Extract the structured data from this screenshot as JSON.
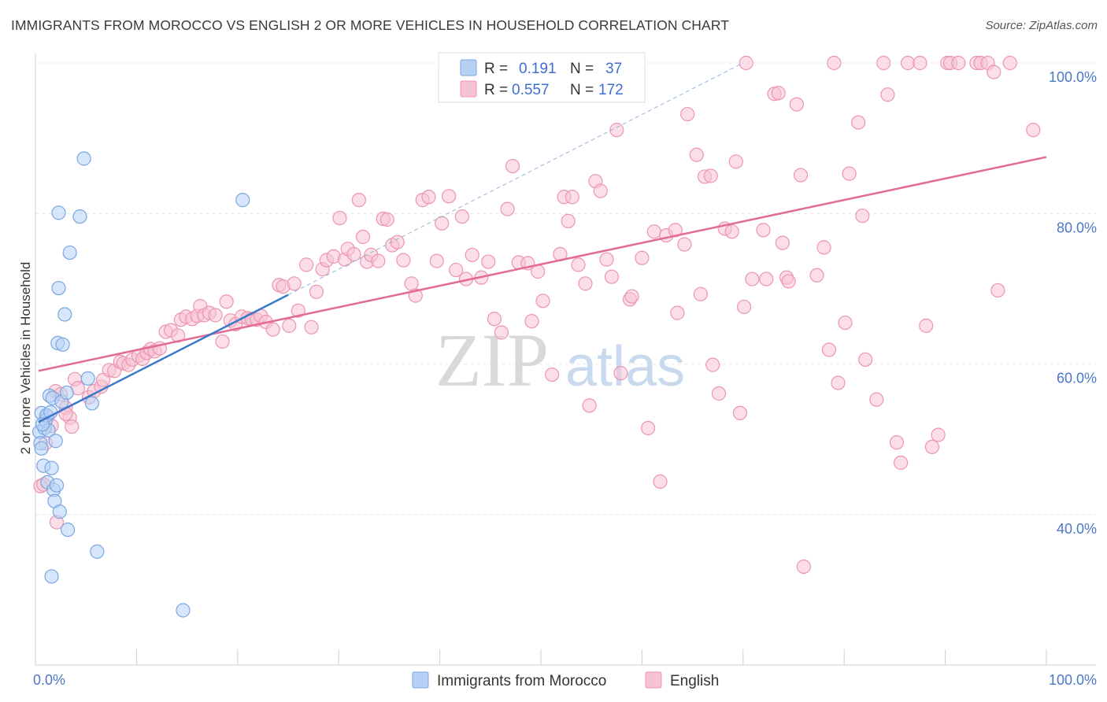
{
  "header": {
    "title": "IMMIGRANTS FROM MOROCCO VS ENGLISH 2 OR MORE VEHICLES IN HOUSEHOLD CORRELATION CHART",
    "source": "Source: ZipAtlas.com"
  },
  "watermark": {
    "zip": "ZIP",
    "atlas": "atlas"
  },
  "legend_top": {
    "rows": [
      {
        "r_label": "R =",
        "r_value": "0.191",
        "n_label": "N =",
        "n_value": "37"
      },
      {
        "r_label": "R =",
        "r_value": "0.557",
        "n_label": "N =",
        "n_value": "172"
      }
    ]
  },
  "legend_bottom": {
    "items": [
      {
        "label": "Immigrants from Morocco"
      },
      {
        "label": "English"
      }
    ]
  },
  "colors": {
    "morocco_fill": "#b7d1f5",
    "morocco_stroke": "#7aa6e0",
    "morocco_line": "#3a78cc",
    "english_fill": "#f7c2d3",
    "english_stroke": "#ec95b1",
    "english_line": "#e26b96",
    "grid": "#e6e6e6",
    "tick_text": "#4a78c8"
  },
  "chart_data": {
    "type": "scatter",
    "title": "IMMIGRANTS FROM MOROCCO VS ENGLISH 2 OR MORE VEHICLES IN HOUSEHOLD CORRELATION CHART",
    "xlabel": "",
    "ylabel": "2 or more Vehicles in Household",
    "xlim": [
      0,
      100
    ],
    "ylim": [
      20,
      100
    ],
    "x_tick_labels": [
      "0.0%",
      "100.0%"
    ],
    "y_ticks": [
      40,
      60,
      80,
      100
    ],
    "y_tick_labels": [
      "40.0%",
      "60.0%",
      "80.0%",
      "100.0%"
    ],
    "grid": true,
    "legend_position": "top-center",
    "series": [
      {
        "name": "Immigrants from Morocco",
        "r": 0.191,
        "n": 37,
        "trend": {
          "x0": 0.3,
          "y0": 52.3,
          "x1": 25,
          "y1": 69.2
        },
        "trend_extension": {
          "x0": 25,
          "y0": 69.2,
          "x1": 70,
          "y1": 100
        },
        "points": [
          [
            0.4,
            51.0
          ],
          [
            0.5,
            49.5
          ],
          [
            0.6,
            53.5
          ],
          [
            0.6,
            48.8
          ],
          [
            0.8,
            46.5
          ],
          [
            0.9,
            51.5
          ],
          [
            1.0,
            52.5
          ],
          [
            1.1,
            53.2
          ],
          [
            1.2,
            44.3
          ],
          [
            1.3,
            51.2
          ],
          [
            1.4,
            55.8
          ],
          [
            1.5,
            53.6
          ],
          [
            1.6,
            46.2
          ],
          [
            1.6,
            31.8
          ],
          [
            1.7,
            55.5
          ],
          [
            1.8,
            43.3
          ],
          [
            1.9,
            41.8
          ],
          [
            2.0,
            49.8
          ],
          [
            2.1,
            43.9
          ],
          [
            2.2,
            62.8
          ],
          [
            2.3,
            70.1
          ],
          [
            2.3,
            80.1
          ],
          [
            2.4,
            40.4
          ],
          [
            2.6,
            55.0
          ],
          [
            2.7,
            62.6
          ],
          [
            2.9,
            66.6
          ],
          [
            3.1,
            56.2
          ],
          [
            3.2,
            38.0
          ],
          [
            3.4,
            74.8
          ],
          [
            4.4,
            79.6
          ],
          [
            4.8,
            87.3
          ],
          [
            5.2,
            58.1
          ],
          [
            5.6,
            54.8
          ],
          [
            6.1,
            35.1
          ],
          [
            14.6,
            27.3
          ],
          [
            20.5,
            81.8
          ],
          [
            0.7,
            52.0
          ]
        ]
      },
      {
        "name": "English",
        "r": 0.557,
        "n": 172,
        "trend": {
          "x0": 0.3,
          "y0": 59.1,
          "x1": 100,
          "y1": 87.5
        },
        "points": [
          [
            0.5,
            43.8
          ],
          [
            1.0,
            49.5
          ],
          [
            1.2,
            53.0
          ],
          [
            1.6,
            51.8
          ],
          [
            2.0,
            56.4
          ],
          [
            2.1,
            39.0
          ],
          [
            2.5,
            56.0
          ],
          [
            3.0,
            54.2
          ],
          [
            3.4,
            52.9
          ],
          [
            3.6,
            51.7
          ],
          [
            3.9,
            58.0
          ],
          [
            4.2,
            56.8
          ],
          [
            5.3,
            55.6
          ],
          [
            5.8,
            56.4
          ],
          [
            6.5,
            57.0
          ],
          [
            6.7,
            57.9
          ],
          [
            7.3,
            59.2
          ],
          [
            7.8,
            59.1
          ],
          [
            8.4,
            60.3
          ],
          [
            8.7,
            60.1
          ],
          [
            9.2,
            59.9
          ],
          [
            9.6,
            60.6
          ],
          [
            10.2,
            61.1
          ],
          [
            10.6,
            60.7
          ],
          [
            11.0,
            61.5
          ],
          [
            11.4,
            62.0
          ],
          [
            11.8,
            61.7
          ],
          [
            12.3,
            62.1
          ],
          [
            12.9,
            64.3
          ],
          [
            13.4,
            64.5
          ],
          [
            14.1,
            63.8
          ],
          [
            14.4,
            65.9
          ],
          [
            14.9,
            66.3
          ],
          [
            15.5,
            66.0
          ],
          [
            16.0,
            66.4
          ],
          [
            16.3,
            67.7
          ],
          [
            16.7,
            66.5
          ],
          [
            17.2,
            66.8
          ],
          [
            17.8,
            66.5
          ],
          [
            18.5,
            63.0
          ],
          [
            18.9,
            68.3
          ],
          [
            19.3,
            65.8
          ],
          [
            19.8,
            65.3
          ],
          [
            20.4,
            66.3
          ],
          [
            21.0,
            66.1
          ],
          [
            21.4,
            66.0
          ],
          [
            21.9,
            65.9
          ],
          [
            22.3,
            66.4
          ],
          [
            22.8,
            65.6
          ],
          [
            23.5,
            64.6
          ],
          [
            24.1,
            70.5
          ],
          [
            24.5,
            70.3
          ],
          [
            25.1,
            65.1
          ],
          [
            25.6,
            70.7
          ],
          [
            26.0,
            67.1
          ],
          [
            26.8,
            73.2
          ],
          [
            27.3,
            64.9
          ],
          [
            27.8,
            69.6
          ],
          [
            28.4,
            72.6
          ],
          [
            28.8,
            73.8
          ],
          [
            29.5,
            74.3
          ],
          [
            30.1,
            79.4
          ],
          [
            30.6,
            73.9
          ],
          [
            30.9,
            75.3
          ],
          [
            31.5,
            74.6
          ],
          [
            32.0,
            81.8
          ],
          [
            32.4,
            76.9
          ],
          [
            32.8,
            73.6
          ],
          [
            33.2,
            74.5
          ],
          [
            33.9,
            73.7
          ],
          [
            34.4,
            79.3
          ],
          [
            34.8,
            79.2
          ],
          [
            35.3,
            75.8
          ],
          [
            35.8,
            76.2
          ],
          [
            36.4,
            73.8
          ],
          [
            37.2,
            70.7
          ],
          [
            37.6,
            69.1
          ],
          [
            38.3,
            81.8
          ],
          [
            38.9,
            82.2
          ],
          [
            39.7,
            73.7
          ],
          [
            40.2,
            78.7
          ],
          [
            40.9,
            82.3
          ],
          [
            41.6,
            72.5
          ],
          [
            42.2,
            79.6
          ],
          [
            42.6,
            71.3
          ],
          [
            43.2,
            74.5
          ],
          [
            44.1,
            71.5
          ],
          [
            44.8,
            73.6
          ],
          [
            45.4,
            66.0
          ],
          [
            46.1,
            64.2
          ],
          [
            46.7,
            80.6
          ],
          [
            47.2,
            86.3
          ],
          [
            47.8,
            73.5
          ],
          [
            48.7,
            73.4
          ],
          [
            49.1,
            65.7
          ],
          [
            49.7,
            72.3
          ],
          [
            50.2,
            68.4
          ],
          [
            51.1,
            58.6
          ],
          [
            51.9,
            74.6
          ],
          [
            52.3,
            82.2
          ],
          [
            52.7,
            79.0
          ],
          [
            53.1,
            82.2
          ],
          [
            53.7,
            73.2
          ],
          [
            54.4,
            70.7
          ],
          [
            54.8,
            54.5
          ],
          [
            55.4,
            84.3
          ],
          [
            55.9,
            83.0
          ],
          [
            56.5,
            73.9
          ],
          [
            57.0,
            71.6
          ],
          [
            57.5,
            91.1
          ],
          [
            57.9,
            58.8
          ],
          [
            58.8,
            68.6
          ],
          [
            59.0,
            69.0
          ],
          [
            60.0,
            74.1
          ],
          [
            60.6,
            51.5
          ],
          [
            61.2,
            77.6
          ],
          [
            61.8,
            44.4
          ],
          [
            62.4,
            77.1
          ],
          [
            63.3,
            77.8
          ],
          [
            63.5,
            66.8
          ],
          [
            64.2,
            75.9
          ],
          [
            64.5,
            93.2
          ],
          [
            65.4,
            87.8
          ],
          [
            65.8,
            69.3
          ],
          [
            66.2,
            84.9
          ],
          [
            66.8,
            85.0
          ],
          [
            67.0,
            59.9
          ],
          [
            67.6,
            56.1
          ],
          [
            68.2,
            78.0
          ],
          [
            68.9,
            77.6
          ],
          [
            69.3,
            86.9
          ],
          [
            69.7,
            53.5
          ],
          [
            70.1,
            67.6
          ],
          [
            70.3,
            100.0
          ],
          [
            70.9,
            71.3
          ],
          [
            72.0,
            77.8
          ],
          [
            72.3,
            71.3
          ],
          [
            73.1,
            95.9
          ],
          [
            73.5,
            96.0
          ],
          [
            73.9,
            76.1
          ],
          [
            74.3,
            71.5
          ],
          [
            74.5,
            71.0
          ],
          [
            75.3,
            94.5
          ],
          [
            75.7,
            85.1
          ],
          [
            76.0,
            33.1
          ],
          [
            77.3,
            71.8
          ],
          [
            78.0,
            75.5
          ],
          [
            78.5,
            61.9
          ],
          [
            79.0,
            100.0
          ],
          [
            79.4,
            57.5
          ],
          [
            80.1,
            65.5
          ],
          [
            80.5,
            85.3
          ],
          [
            81.4,
            92.1
          ],
          [
            81.8,
            79.7
          ],
          [
            82.1,
            60.6
          ],
          [
            83.2,
            55.3
          ],
          [
            83.9,
            100.0
          ],
          [
            84.3,
            95.8
          ],
          [
            85.2,
            49.6
          ],
          [
            85.6,
            46.9
          ],
          [
            86.3,
            100.0
          ],
          [
            87.5,
            100.0
          ],
          [
            88.1,
            65.1
          ],
          [
            88.7,
            49.0
          ],
          [
            89.3,
            50.6
          ],
          [
            90.2,
            100.0
          ],
          [
            90.5,
            100.0
          ],
          [
            91.3,
            100.0
          ],
          [
            93.1,
            100.0
          ],
          [
            93.5,
            100.0
          ],
          [
            94.2,
            100.0
          ],
          [
            94.8,
            98.8
          ],
          [
            95.2,
            69.8
          ],
          [
            96.4,
            100.0
          ],
          [
            98.7,
            91.1
          ],
          [
            0.8,
            44.0
          ],
          [
            3.0,
            53.4
          ]
        ]
      }
    ]
  }
}
